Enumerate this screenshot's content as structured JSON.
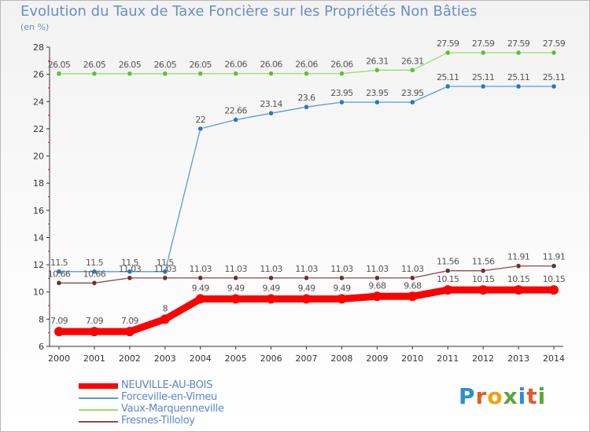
{
  "title": "Evolution du Taux de Taxe Foncière sur les Propriétés Non Bâties",
  "subtitle": "(en %)",
  "logo": {
    "text": "Proxiti"
  },
  "chart_data": {
    "type": "line",
    "title": "Evolution du Taux de Taxe Foncière sur les Propriétés Non Bâties",
    "ylabel": "(en %)",
    "ylim": [
      6,
      28
    ],
    "yticks": [
      6,
      8,
      10,
      12,
      14,
      16,
      18,
      20,
      22,
      24,
      26,
      28
    ],
    "grid": false,
    "legend_position": "bottom-left",
    "x": [
      "2000",
      "2001",
      "2002",
      "2003",
      "2004",
      "2005",
      "2006",
      "2007",
      "2008",
      "2009",
      "2010",
      "2011",
      "2012",
      "2013",
      "2014"
    ],
    "series": [
      {
        "name": "NEUVILLE-AU-BOIS",
        "color": "#ff0000",
        "emphasis": true,
        "values": [
          7.09,
          7.09,
          7.09,
          8,
          9.49,
          9.49,
          9.49,
          9.49,
          9.49,
          9.68,
          9.68,
          10.15,
          10.15,
          10.15,
          10.15
        ],
        "labels": [
          "7.09",
          "7.09",
          "7.09",
          "8",
          "9.49",
          "9.49",
          "9.49",
          "9.49",
          "9.49",
          "9.68",
          "9.68",
          "10.15",
          "10.15",
          "10.15",
          "10.15"
        ]
      },
      {
        "name": "Forceville-en-Vimeu",
        "color": "#5b9bd5",
        "marker": "#2e75b6",
        "values": [
          11.5,
          11.5,
          11.5,
          11.5,
          22,
          22.66,
          23.14,
          23.6,
          23.95,
          23.95,
          23.95,
          25.11,
          25.11,
          25.11,
          25.11
        ],
        "labels": [
          "11.5",
          "11.5",
          "11.5",
          "11.5",
          "22",
          "22.66",
          "23.14",
          "23.6",
          "23.95",
          "23.95",
          "23.95",
          "25.11",
          "25.11",
          "25.11",
          "25.11"
        ]
      },
      {
        "name": "Vaux-Marquenneville",
        "color": "#99dd66",
        "marker": "#66bb33",
        "values": [
          26.05,
          26.05,
          26.05,
          26.05,
          26.05,
          26.06,
          26.06,
          26.06,
          26.06,
          26.31,
          26.31,
          27.59,
          27.59,
          27.59,
          27.59
        ],
        "labels": [
          "26.05",
          "26.05",
          "26.05",
          "26.05",
          "26.05",
          "26.06",
          "26.06",
          "26.06",
          "26.06",
          "26.31",
          "26.31",
          "27.59",
          "27.59",
          "27.59",
          "27.59"
        ]
      },
      {
        "name": "Fresnes-Tilloloy",
        "color": "#8b4a4a",
        "marker": "#6b2f2f",
        "values": [
          10.66,
          10.66,
          11.03,
          11.03,
          11.03,
          11.03,
          11.03,
          11.03,
          11.03,
          11.03,
          11.03,
          11.56,
          11.56,
          11.91,
          11.91
        ],
        "labels": [
          "10.66",
          "10.66",
          "11.03",
          "11.03",
          "11.03",
          "11.03",
          "11.03",
          "11.03",
          "11.03",
          "11.03",
          "11.03",
          "11.56",
          "11.56",
          "11.91",
          "11.91"
        ]
      }
    ]
  }
}
